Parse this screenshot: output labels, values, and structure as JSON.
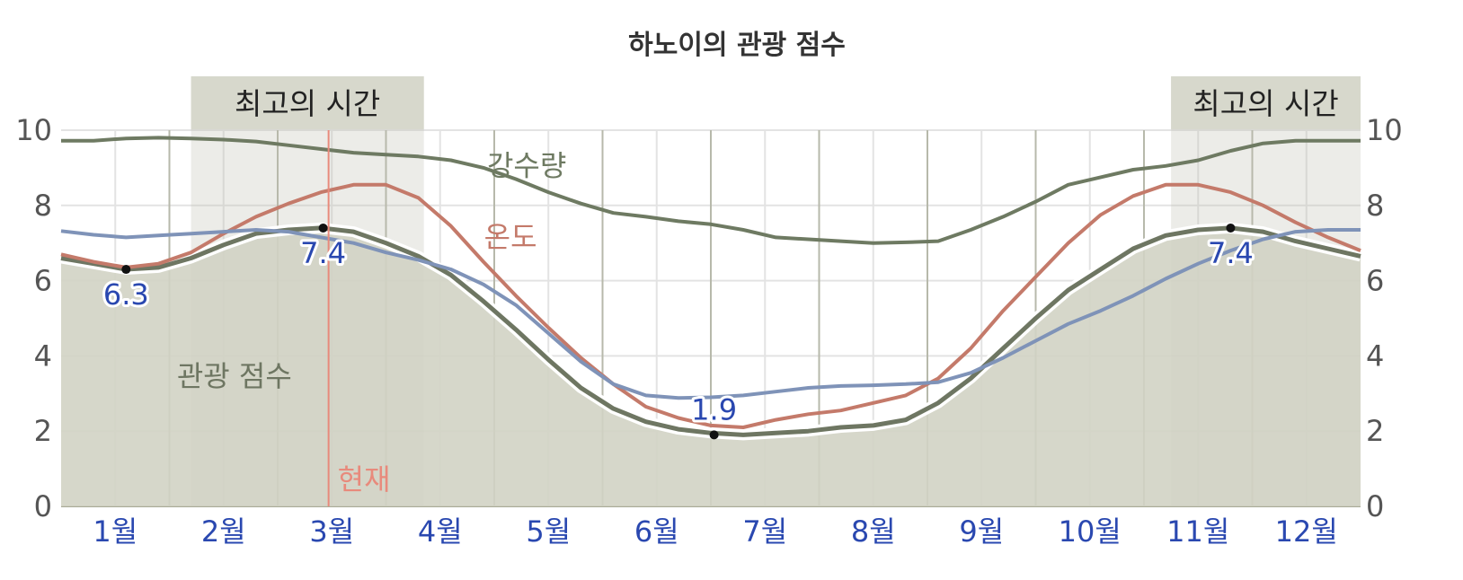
{
  "chart_data": {
    "type": "area",
    "title": "하노이의 관광 점수",
    "ylim": [
      0,
      10
    ],
    "y_ticks": [
      "0",
      "2",
      "4",
      "6",
      "8",
      "10"
    ],
    "grid": true,
    "categories": [
      "1월",
      "2월",
      "3월",
      "4월",
      "5월",
      "6월",
      "7월",
      "8월",
      "9월",
      "10월",
      "11월",
      "12월"
    ],
    "x_range": [
      0,
      12
    ],
    "best_time": {
      "label": "최고의 시간",
      "periods": [
        {
          "label": "최고의 시간",
          "start": 1.2,
          "end": 3.35
        },
        {
          "label": "최고의 시간",
          "end": 12.0,
          "start": 10.25
        }
      ]
    },
    "current": {
      "label": "현재",
      "x": 2.47
    },
    "series": [
      {
        "name": "관광 점수",
        "kind": "area",
        "color": "#6e7662",
        "fill": "#d2d3c4",
        "x": [
          0,
          0.3,
          0.6,
          0.9,
          1.2,
          1.5,
          1.8,
          2.1,
          2.4,
          2.7,
          3.0,
          3.3,
          3.6,
          3.9,
          4.2,
          4.5,
          4.8,
          5.1,
          5.4,
          5.7,
          6.0,
          6.3,
          6.6,
          6.9,
          7.2,
          7.5,
          7.8,
          8.1,
          8.4,
          8.7,
          9.0,
          9.3,
          9.6,
          9.9,
          10.2,
          10.5,
          10.8,
          11.1,
          11.4,
          11.7,
          12.0
        ],
        "values": [
          6.6,
          6.45,
          6.3,
          6.35,
          6.6,
          6.95,
          7.25,
          7.35,
          7.4,
          7.3,
          7.0,
          6.65,
          6.15,
          5.45,
          4.7,
          3.9,
          3.15,
          2.6,
          2.25,
          2.05,
          1.95,
          1.9,
          1.95,
          2.0,
          2.1,
          2.15,
          2.3,
          2.75,
          3.4,
          4.2,
          5.0,
          5.75,
          6.3,
          6.85,
          7.2,
          7.35,
          7.4,
          7.3,
          7.05,
          6.85,
          6.65
        ]
      },
      {
        "name": "강수량",
        "kind": "line",
        "color": "#6e7a62",
        "x": [
          0,
          0.3,
          0.6,
          0.9,
          1.2,
          1.5,
          1.8,
          2.1,
          2.4,
          2.7,
          3.0,
          3.3,
          3.6,
          3.9,
          4.2,
          4.5,
          4.8,
          5.1,
          5.4,
          5.7,
          6.0,
          6.3,
          6.6,
          6.9,
          7.2,
          7.5,
          7.8,
          8.1,
          8.4,
          8.7,
          9.0,
          9.3,
          9.6,
          9.9,
          10.2,
          10.5,
          10.8,
          11.1,
          11.4,
          11.7,
          12.0
        ],
        "values": [
          9.72,
          9.72,
          9.78,
          9.8,
          9.78,
          9.75,
          9.7,
          9.6,
          9.5,
          9.4,
          9.35,
          9.3,
          9.2,
          9.0,
          8.7,
          8.35,
          8.05,
          7.8,
          7.7,
          7.58,
          7.5,
          7.35,
          7.15,
          7.1,
          7.05,
          7.0,
          7.02,
          7.05,
          7.35,
          7.7,
          8.1,
          8.55,
          8.75,
          8.95,
          9.05,
          9.2,
          9.45,
          9.65,
          9.72,
          9.72,
          9.72
        ]
      },
      {
        "name": "온도",
        "kind": "line",
        "color": "#c47a6a",
        "x": [
          0,
          0.3,
          0.6,
          0.9,
          1.2,
          1.5,
          1.8,
          2.1,
          2.4,
          2.7,
          3.0,
          3.3,
          3.6,
          3.9,
          4.2,
          4.5,
          4.8,
          5.1,
          5.4,
          5.7,
          6.0,
          6.3,
          6.6,
          6.9,
          7.2,
          7.5,
          7.8,
          8.1,
          8.4,
          8.7,
          9.0,
          9.3,
          9.6,
          9.9,
          10.2,
          10.5,
          10.8,
          11.1,
          11.4,
          11.7,
          12.0
        ],
        "values": [
          6.7,
          6.5,
          6.35,
          6.45,
          6.75,
          7.25,
          7.7,
          8.05,
          8.35,
          8.55,
          8.55,
          8.2,
          7.45,
          6.5,
          5.6,
          4.75,
          3.95,
          3.25,
          2.65,
          2.35,
          2.15,
          2.1,
          2.3,
          2.45,
          2.55,
          2.75,
          2.95,
          3.4,
          4.2,
          5.2,
          6.1,
          7.0,
          7.75,
          8.25,
          8.55,
          8.55,
          8.35,
          8.0,
          7.55,
          7.15,
          6.8
        ]
      },
      {
        "name": "",
        "kind": "line",
        "color": "#7f93b8",
        "x": [
          0,
          0.3,
          0.6,
          0.9,
          1.2,
          1.5,
          1.8,
          2.1,
          2.4,
          2.7,
          3.0,
          3.3,
          3.6,
          3.9,
          4.2,
          4.5,
          4.8,
          5.1,
          5.4,
          5.7,
          6.0,
          6.3,
          6.6,
          6.9,
          7.2,
          7.5,
          7.8,
          8.1,
          8.4,
          8.7,
          9.0,
          9.3,
          9.6,
          9.9,
          10.2,
          10.5,
          10.8,
          11.1,
          11.4,
          11.7,
          12.0
        ],
        "values": [
          7.32,
          7.22,
          7.15,
          7.2,
          7.25,
          7.3,
          7.35,
          7.3,
          7.15,
          7.0,
          6.75,
          6.55,
          6.3,
          5.9,
          5.35,
          4.6,
          3.85,
          3.25,
          2.95,
          2.88,
          2.9,
          2.95,
          3.05,
          3.15,
          3.2,
          3.22,
          3.25,
          3.3,
          3.55,
          3.95,
          4.4,
          4.85,
          5.2,
          5.6,
          6.05,
          6.45,
          6.8,
          7.1,
          7.3,
          7.35,
          7.35
        ]
      }
    ],
    "point_labels": [
      {
        "label": "6.3",
        "x": 0.6,
        "y": 6.3,
        "pos": "below"
      },
      {
        "label": "7.4",
        "x": 2.42,
        "y": 7.4,
        "pos": "below"
      },
      {
        "label": "1.9",
        "x": 6.03,
        "y": 1.9,
        "pos": "above"
      },
      {
        "label": "7.4",
        "x": 10.8,
        "y": 7.4,
        "pos": "below"
      }
    ],
    "colors": {
      "best_shade": "#b9bcab",
      "best_label_bg": "#d7d8cc",
      "current_line": "#e88a7c",
      "grid": "#e3e3e3",
      "month_separator": "#b7b9ab"
    }
  }
}
